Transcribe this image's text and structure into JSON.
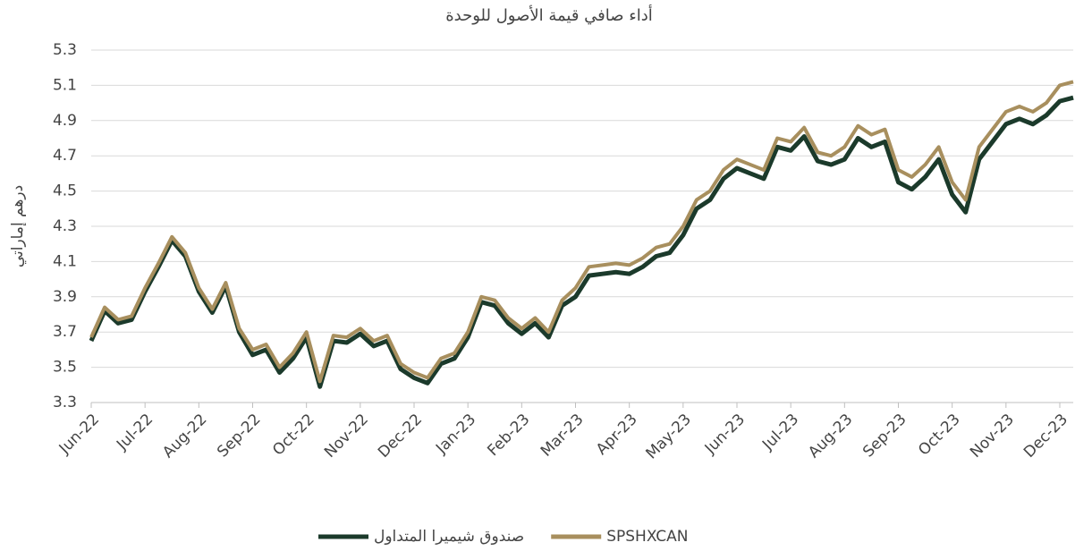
{
  "chart_data": {
    "type": "line",
    "title": "أداء صافي قيمة الأصول للوحدة",
    "y_label": "درهم إماراتي",
    "categories": [
      "Jun-22",
      null,
      null,
      null,
      "Jul-22",
      null,
      null,
      null,
      "Aug-22",
      null,
      null,
      null,
      "Sep-22",
      null,
      null,
      null,
      "Oct-22",
      null,
      null,
      null,
      "Nov-22",
      null,
      null,
      null,
      "Dec-22",
      null,
      null,
      null,
      "Jan-23",
      null,
      null,
      null,
      "Feb-23",
      null,
      null,
      null,
      "Mar-23",
      null,
      null,
      null,
      "Apr-23",
      null,
      null,
      null,
      "May-23",
      null,
      null,
      null,
      "Jun-23",
      null,
      null,
      null,
      "Jul-23",
      null,
      null,
      null,
      "Aug-23",
      null,
      null,
      null,
      "Sep-23",
      null,
      null,
      null,
      "Oct-23",
      null,
      null,
      null,
      "Nov-23",
      null,
      null,
      null,
      "Dec-23",
      null
    ],
    "series": [
      {
        "name": "صندوق شيميرا المتداول",
        "color": "#1b3a2b",
        "values": [
          3.65,
          3.82,
          3.75,
          3.77,
          3.93,
          4.07,
          4.22,
          4.13,
          3.93,
          3.81,
          3.96,
          3.7,
          3.57,
          3.6,
          3.47,
          3.55,
          3.67,
          3.39,
          3.65,
          3.64,
          3.69,
          3.62,
          3.65,
          3.49,
          3.44,
          3.41,
          3.52,
          3.55,
          3.67,
          3.87,
          3.85,
          3.75,
          3.69,
          3.75,
          3.67,
          3.85,
          3.9,
          4.02,
          4.03,
          4.04,
          4.03,
          4.07,
          4.13,
          4.15,
          4.25,
          4.4,
          4.45,
          4.57,
          4.63,
          4.6,
          4.57,
          4.75,
          4.73,
          4.81,
          4.67,
          4.65,
          4.68,
          4.8,
          4.75,
          4.78,
          4.55,
          4.51,
          4.58,
          4.68,
          4.48,
          4.38,
          4.68,
          4.78,
          4.88,
          4.91,
          4.88,
          4.93,
          5.01,
          5.03
        ]
      },
      {
        "name": "SPSHXCAN",
        "color": "#a88f5e",
        "values": [
          3.67,
          3.84,
          3.77,
          3.79,
          3.95,
          4.09,
          4.24,
          4.15,
          3.95,
          3.83,
          3.98,
          3.72,
          3.6,
          3.63,
          3.5,
          3.58,
          3.7,
          3.42,
          3.68,
          3.67,
          3.72,
          3.65,
          3.68,
          3.52,
          3.47,
          3.44,
          3.55,
          3.58,
          3.7,
          3.9,
          3.88,
          3.78,
          3.72,
          3.78,
          3.7,
          3.88,
          3.95,
          4.07,
          4.08,
          4.09,
          4.08,
          4.12,
          4.18,
          4.2,
          4.3,
          4.45,
          4.5,
          4.62,
          4.68,
          4.65,
          4.62,
          4.8,
          4.78,
          4.86,
          4.72,
          4.7,
          4.75,
          4.87,
          4.82,
          4.85,
          4.62,
          4.58,
          4.65,
          4.75,
          4.55,
          4.45,
          4.75,
          4.85,
          4.95,
          4.98,
          4.95,
          5.0,
          5.1,
          5.12
        ]
      }
    ],
    "ylim": [
      3.3,
      5.3
    ],
    "yticks": [
      3.3,
      3.5,
      3.7,
      3.9,
      4.1,
      4.3,
      4.5,
      4.7,
      4.9,
      5.1,
      5.3
    ],
    "grid": true,
    "legend": "bottom"
  }
}
